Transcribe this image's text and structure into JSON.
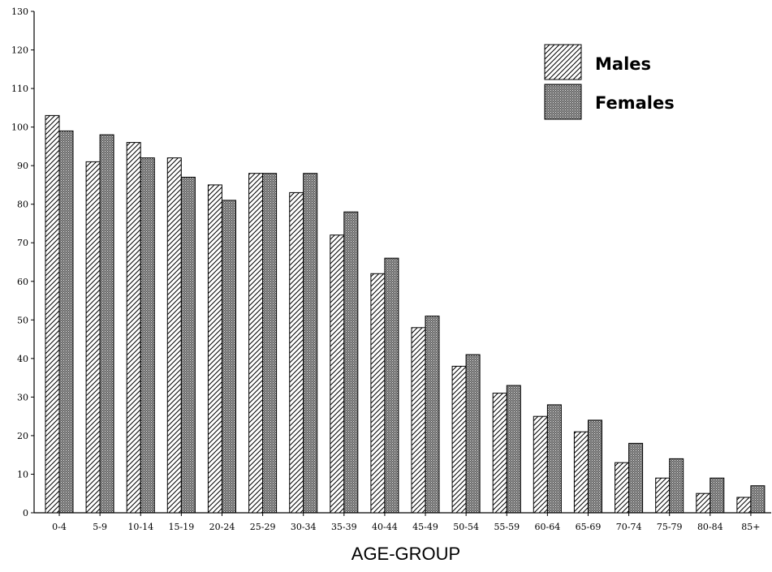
{
  "chart_data": {
    "type": "bar",
    "title": "",
    "xlabel": "AGE-GROUP",
    "ylabel": "",
    "ylim": [
      0,
      130
    ],
    "yticks": [
      0,
      10,
      20,
      30,
      40,
      50,
      60,
      70,
      80,
      90,
      100,
      110,
      120,
      130
    ],
    "grid": false,
    "legend_position": "top-right",
    "categories": [
      "0-4",
      "5-9",
      "10-14",
      "15-19",
      "20-24",
      "25-29",
      "30-34",
      "35-39",
      "40-44",
      "45-49",
      "50-54",
      "55-59",
      "60-64",
      "65-69",
      "70-74",
      "75-79",
      "80-84",
      "85+"
    ],
    "series": [
      {
        "name": "Males",
        "pattern": "diagonal-hatch",
        "values": [
          103,
          91,
          96,
          92,
          85,
          88,
          83,
          72,
          62,
          48,
          38,
          31,
          25,
          21,
          13,
          9,
          5,
          4
        ]
      },
      {
        "name": "Females",
        "pattern": "crosshatch-dark",
        "values": [
          99,
          98,
          92,
          87,
          81,
          88,
          88,
          78,
          66,
          51,
          41,
          33,
          28,
          24,
          18,
          14,
          9,
          7
        ]
      }
    ]
  }
}
